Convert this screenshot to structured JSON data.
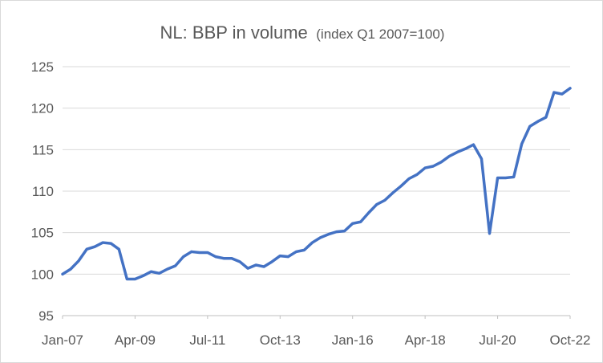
{
  "chart_data": {
    "type": "line",
    "title": "NL: BBP in volume",
    "subtitle": "(index Q1 2007=100)",
    "xlabel": "",
    "ylabel": "",
    "ylim": [
      95,
      125
    ],
    "yticks": [
      95,
      100,
      105,
      110,
      115,
      120,
      125
    ],
    "grid": true,
    "legend": "none",
    "x_tick_labels": [
      "Jan-07",
      "Apr-09",
      "Jul-11",
      "Oct-13",
      "Jan-16",
      "Apr-18",
      "Jul-20",
      "Oct-22"
    ],
    "line_color": "#4472c4",
    "series": [
      {
        "values": [
          100.0,
          100.6,
          101.6,
          103.0,
          103.3,
          103.8,
          103.7,
          103.0,
          99.4,
          99.4,
          99.8,
          100.3,
          100.1,
          100.6,
          101.0,
          102.1,
          102.7,
          102.6,
          102.6,
          102.1,
          101.9,
          101.9,
          101.5,
          100.7,
          101.1,
          100.9,
          101.5,
          102.2,
          102.1,
          102.7,
          102.9,
          103.8,
          104.4,
          104.8,
          105.1,
          105.2,
          106.1,
          106.3,
          107.4,
          108.4,
          108.9,
          109.8,
          110.6,
          111.5,
          112.0,
          112.8,
          113.0,
          113.5,
          114.2,
          114.7,
          115.1,
          115.6,
          113.9,
          104.9,
          111.6,
          111.6,
          111.7,
          115.7,
          117.8,
          118.4,
          118.9,
          121.9,
          121.7,
          122.4
        ]
      }
    ]
  }
}
